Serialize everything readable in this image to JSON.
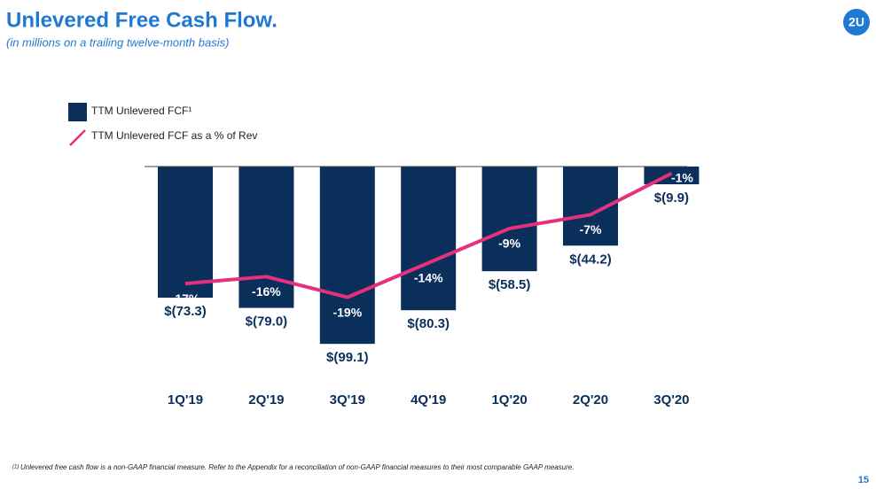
{
  "chart_data": {
    "type": "bar",
    "title": "Unlevered Free Cash Flow.",
    "subtitle": "(in millions on a trailing twelve-month basis)",
    "categories": [
      "1Q'19",
      "2Q'19",
      "3Q'19",
      "4Q'19",
      "1Q'20",
      "2Q'20",
      "3Q'20"
    ],
    "series": [
      {
        "name": "TTM Unlevered FCF¹",
        "type": "bar",
        "color": "#0b2f5b",
        "values": [
          -73.3,
          -79.0,
          -99.1,
          -80.3,
          -58.5,
          -44.2,
          -9.9
        ],
        "value_labels": [
          "$(73.3)",
          "$(79.0)",
          "$(99.1)",
          "$(80.3)",
          "$(58.5)",
          "$(44.2)",
          "$(9.9)"
        ]
      },
      {
        "name": "TTM Unlevered FCF as a % of Rev",
        "type": "line",
        "axis": "y2",
        "color": "#e5307c",
        "values": [
          -17,
          -16,
          -19,
          -14,
          -9,
          -7,
          -1
        ],
        "value_labels": [
          "-17%",
          "-16%",
          "-19%",
          "-14%",
          "-9%",
          "-7%",
          "-1%"
        ]
      }
    ],
    "ylim": [
      -100,
      0
    ],
    "y2lim": [
      -26,
      0
    ],
    "legend": "top-left"
  },
  "logo": "2U",
  "footnote_marker": "(1)",
  "footnote": "Unlevered free cash flow is a non-GAAP financial measure. Refer to the Appendix for a reconciliation of non-GAAP financial measures to their most comparable GAAP measure.",
  "page_number": "15"
}
